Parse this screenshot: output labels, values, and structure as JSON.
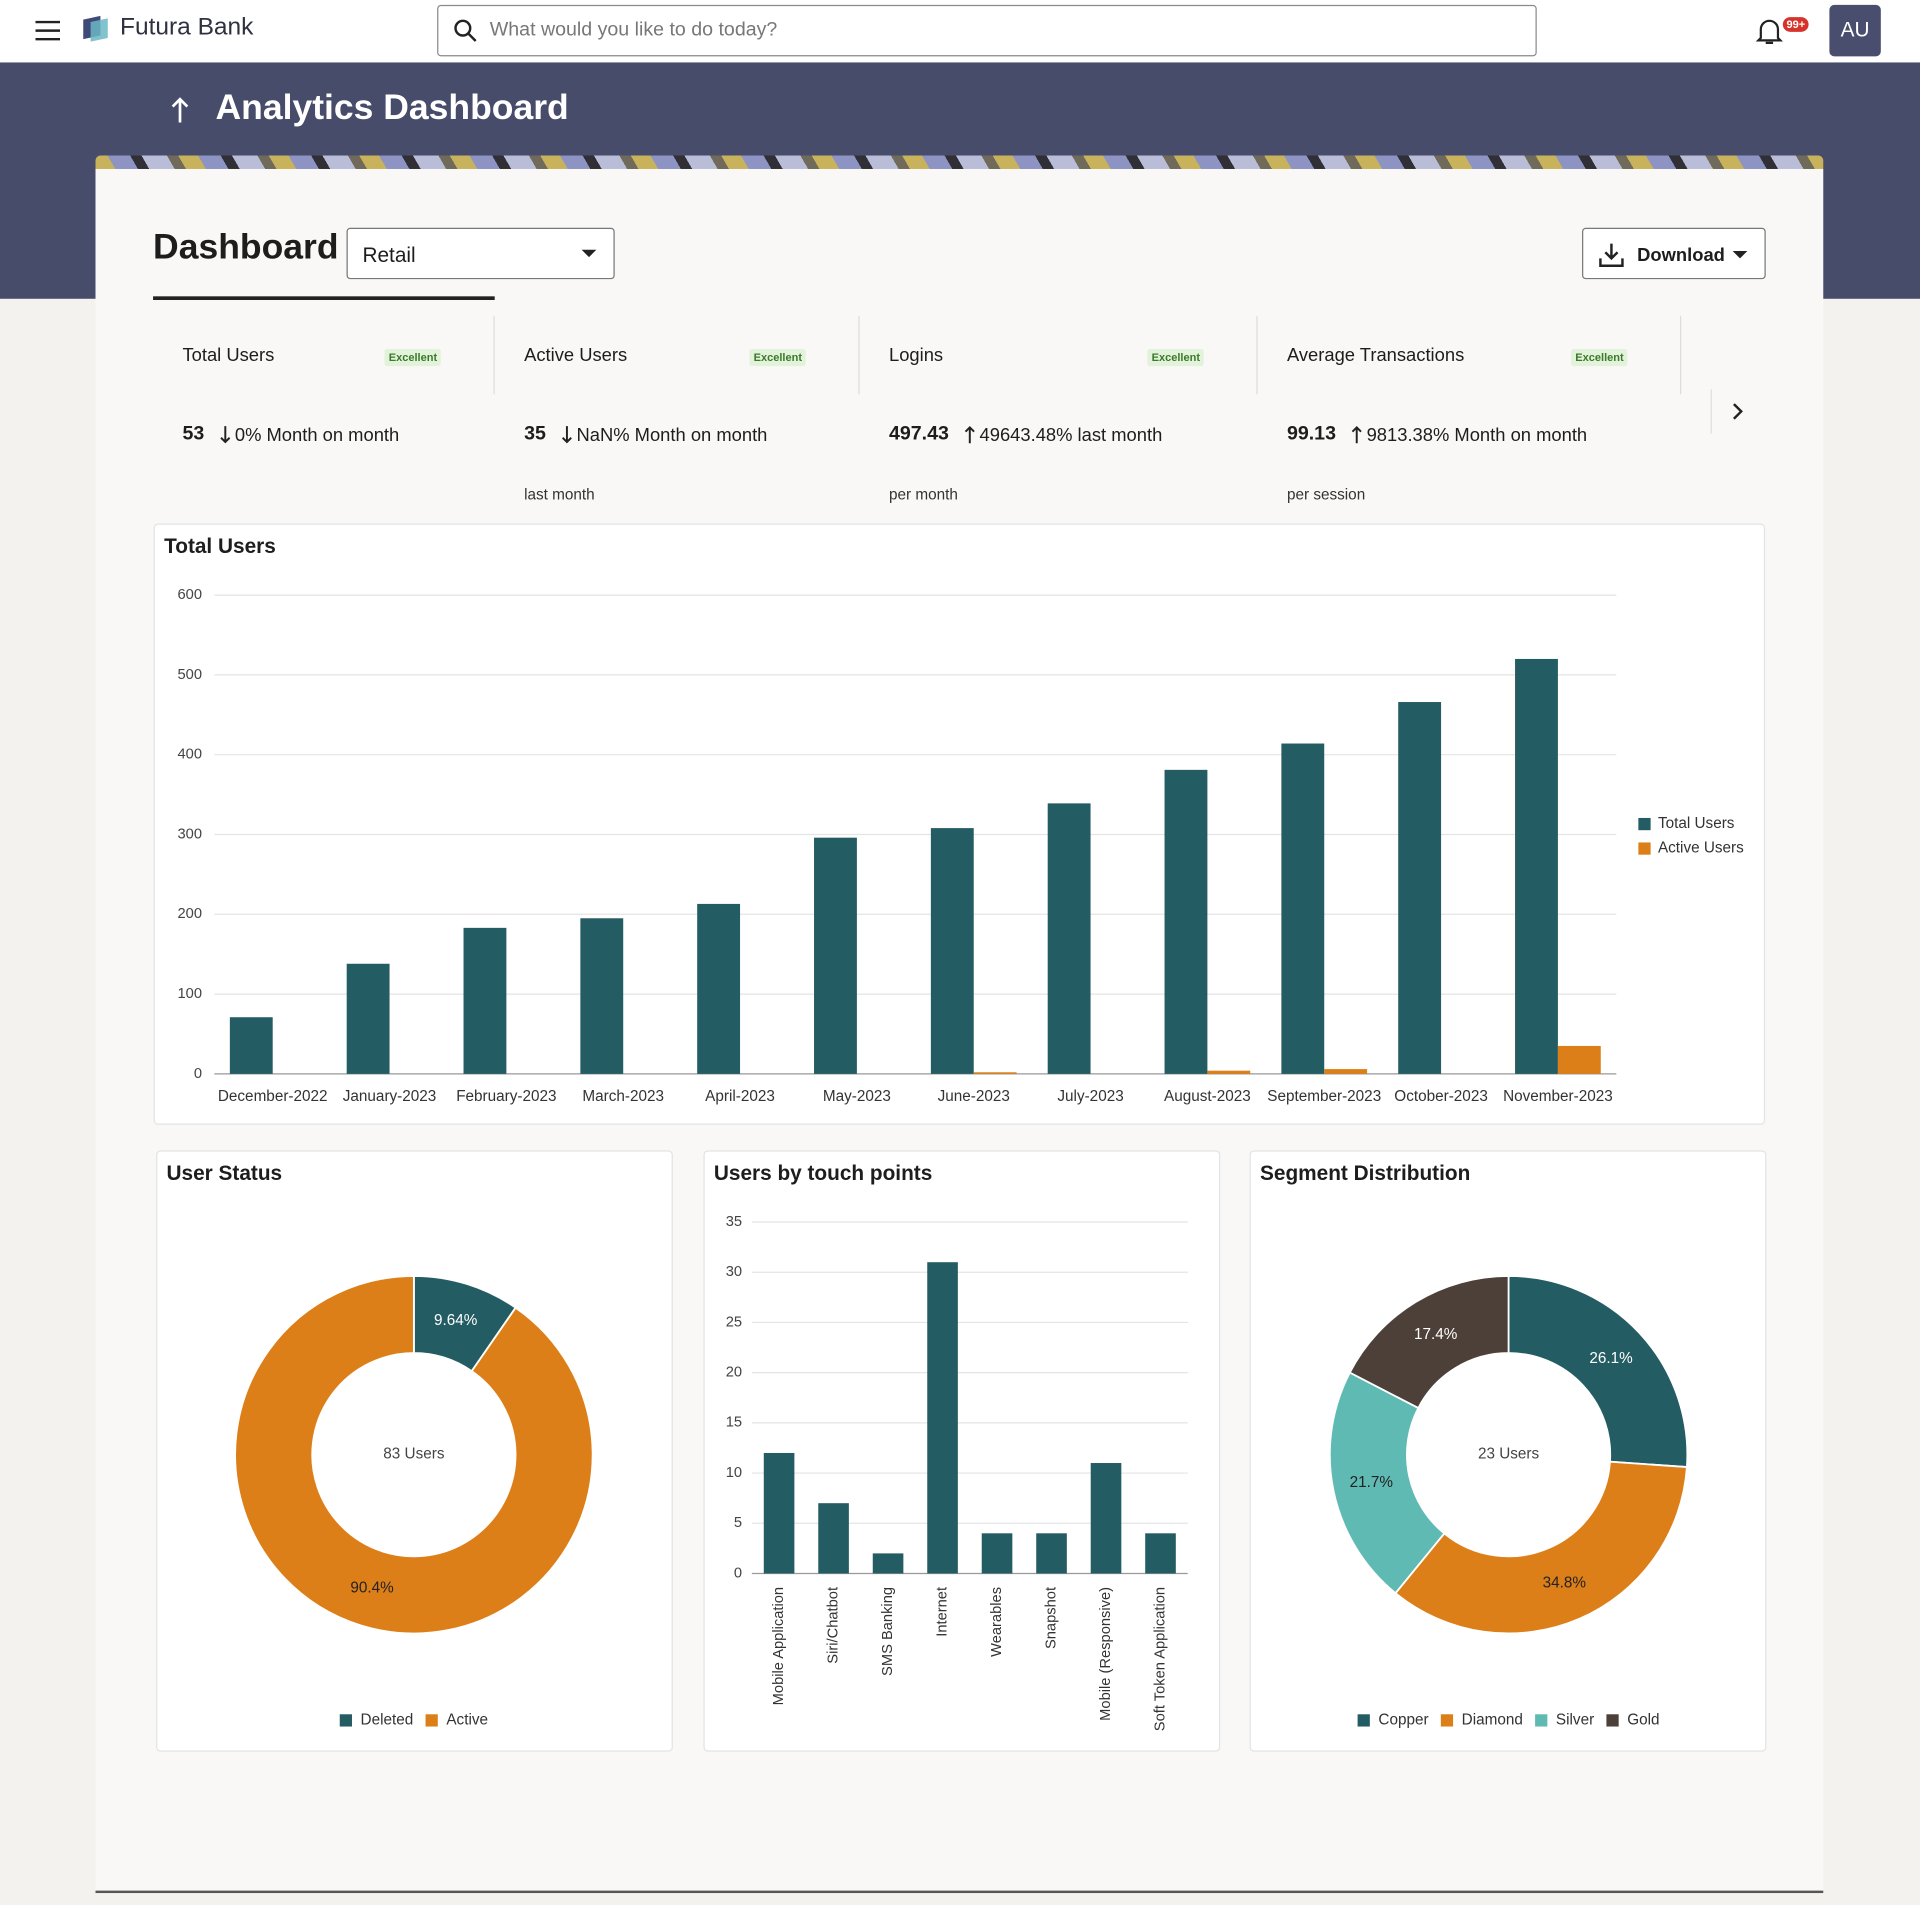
{
  "header": {
    "brand": "Futura Bank",
    "search_placeholder": "What would you like to do today?",
    "notifications": "99+",
    "avatar": "AU"
  },
  "page": {
    "title": "Analytics Dashboard",
    "heading": "Dashboard",
    "segment_select": "Retail",
    "download": "Download"
  },
  "kpis": [
    {
      "title": "Total Users",
      "badge": "Excellent",
      "value": 53,
      "trend": "down",
      "change": "0% Month on month"
    },
    {
      "title": "Active Users",
      "badge": "Excellent",
      "value": 35,
      "trend": "down",
      "change": "NaN% Month on month",
      "note": "last month"
    },
    {
      "title": "Logins",
      "badge": "Excellent",
      "value": 497.43,
      "trend": "up",
      "change": "49643.48% last month",
      "note": "per month"
    },
    {
      "title": "Average Transactions",
      "badge": "Excellent",
      "value": 99.13,
      "trend": "up",
      "change": "9813.38% Month on month",
      "note": "per session"
    }
  ],
  "chart_data": [
    {
      "type": "bar",
      "title": "Total Users",
      "categories": [
        "December-2022",
        "January-2023",
        "February-2023",
        "March-2023",
        "April-2023",
        "May-2023",
        "June-2023",
        "July-2023",
        "August-2023",
        "September-2023",
        "October-2023",
        "November-2023"
      ],
      "series": [
        {
          "name": "Total Users",
          "color": "#245c63",
          "values": [
            71,
            138,
            183,
            195,
            213,
            296,
            308,
            339,
            381,
            414,
            466,
            520
          ]
        },
        {
          "name": "Active Users",
          "color": "#dd7f18",
          "values": [
            0,
            0,
            0,
            0,
            0,
            0,
            2,
            0,
            4,
            6,
            0,
            35
          ]
        }
      ],
      "ylim": [
        0,
        600
      ],
      "yticks": [
        0,
        100,
        200,
        300,
        400,
        500,
        600
      ],
      "grid": true,
      "legend": "right"
    },
    {
      "type": "pie",
      "title": "User Status",
      "center_label": "83 Users",
      "categories": [
        "Deleted",
        "Active"
      ],
      "values": [
        9.64,
        90.4
      ],
      "value_labels": [
        "9.64%",
        "90.4%"
      ],
      "colors": [
        "#245c63",
        "#dd7f18"
      ],
      "legend": "bottom"
    },
    {
      "type": "bar",
      "title": "Users by touch points",
      "categories": [
        "Mobile Application",
        "Siri/Chatbot",
        "SMS Banking",
        "Internet",
        "Wearables",
        "Snapshot",
        "Mobile (Responsive)",
        "Soft Token Application"
      ],
      "values": [
        12,
        7,
        2,
        31,
        4,
        4,
        11,
        4
      ],
      "color": "#245c63",
      "ylim": [
        0,
        35
      ],
      "yticks": [
        0,
        5,
        10,
        15,
        20,
        25,
        30,
        35
      ],
      "grid": true
    },
    {
      "type": "pie",
      "title": "Segment Distribution",
      "center_label": "23 Users",
      "categories": [
        "Copper",
        "Diamond",
        "Silver",
        "Gold"
      ],
      "values": [
        26.1,
        34.8,
        21.7,
        17.4
      ],
      "value_labels": [
        "26.1%",
        "34.8%",
        "21.7%",
        "17.4%"
      ],
      "colors": [
        "#245c63",
        "#dd7f18",
        "#5fbab4",
        "#4d4038"
      ],
      "legend": "bottom"
    }
  ]
}
